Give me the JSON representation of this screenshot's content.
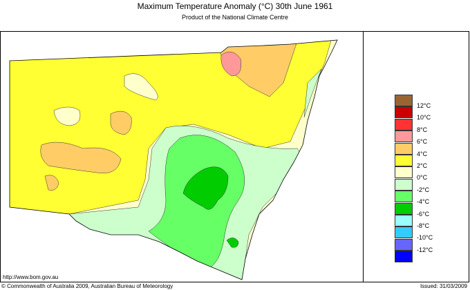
{
  "title": "Maximum Temperature Anomaly (°C)  30th June 1961",
  "subtitle": "Product of the National Climate Centre",
  "url": "http://www.bom.gov.au",
  "copyright": "© Commonwealth of Australia 2009, Australian Bureau of Meteorology",
  "issued": "Issued: 31/03/2009",
  "legend": {
    "colors": [
      "#996633",
      "#cc0000",
      "#ff3333",
      "#ff9999",
      "#ffcc66",
      "#ffff33",
      "#ffffcc",
      "#ccffcc",
      "#66ff66",
      "#00cc00",
      "#99ffff",
      "#33ccff",
      "#6666ff",
      "#0000ff"
    ],
    "labels": [
      "12°C",
      "10°C",
      "8°C",
      "6°C",
      "4°C",
      "2°C",
      "0°C",
      "-2°C",
      "-4°C",
      "-6°C",
      "-8°C",
      "-10°C",
      "-12°C"
    ]
  }
}
